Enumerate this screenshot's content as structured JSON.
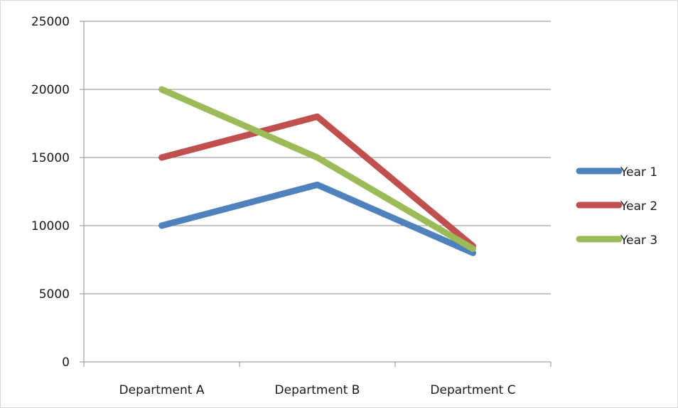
{
  "chart_data": {
    "type": "line",
    "categories": [
      "Department A",
      "Department B",
      "Department C"
    ],
    "series": [
      {
        "name": "Year 1",
        "values": [
          10000,
          13000,
          8000
        ],
        "color": "#4F81BD"
      },
      {
        "name": "Year 2",
        "values": [
          15000,
          18000,
          8500
        ],
        "color": "#C0504D"
      },
      {
        "name": "Year 3",
        "values": [
          20000,
          15000,
          8300
        ],
        "color": "#9BBB59"
      }
    ],
    "y_ticks": [
      "0",
      "5000",
      "10000",
      "15000",
      "20000",
      "25000"
    ],
    "ylim": [
      0,
      25000
    ],
    "grid": true,
    "legend_position": "right",
    "title": "",
    "xlabel": "",
    "ylabel": ""
  }
}
